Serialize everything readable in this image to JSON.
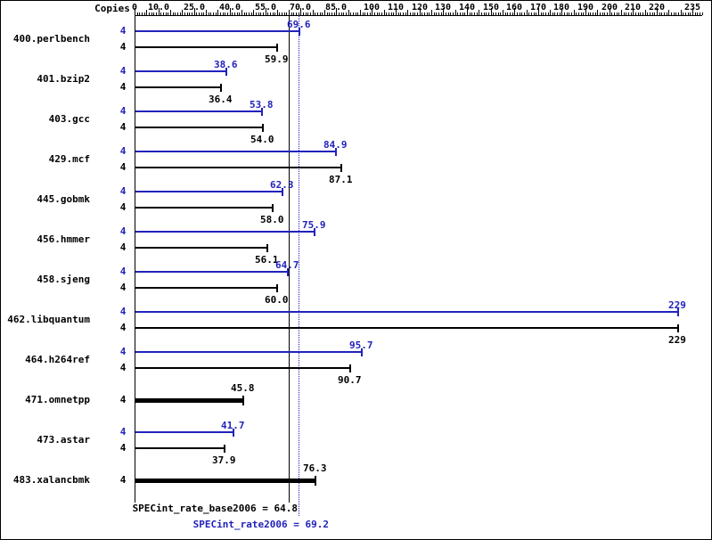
{
  "chart_data": {
    "type": "bar",
    "orientation": "horizontal",
    "copies_header": "Copies",
    "x_axis": {
      "min": 0,
      "max": 235,
      "tick_values": [
        0,
        10,
        25,
        40,
        55,
        70,
        85,
        100,
        110,
        120,
        130,
        140,
        150,
        160,
        170,
        180,
        190,
        200,
        210,
        220,
        235
      ],
      "tick_labels": [
        "0",
        "10.0",
        "25.0",
        "40.0",
        "55.0",
        "70.0",
        "85.0",
        "100",
        "110",
        "120",
        "130",
        "140",
        "150",
        "160",
        "170",
        "180",
        "190",
        "200",
        "210",
        "220",
        "235"
      ]
    },
    "series_colors": {
      "peak": "#2222bb",
      "base": "#000000"
    },
    "benchmarks": [
      {
        "name": "400.perlbench",
        "copies": 4,
        "single": false,
        "peak": 69.6,
        "peak_label": "69.6",
        "base": 59.9,
        "base_label": "59.9"
      },
      {
        "name": "401.bzip2",
        "copies": 4,
        "single": false,
        "peak": 38.6,
        "peak_label": "38.6",
        "base": 36.4,
        "base_label": "36.4"
      },
      {
        "name": "403.gcc",
        "copies": 4,
        "single": false,
        "peak": 53.8,
        "peak_label": "53.8",
        "base": 54.0,
        "base_label": "54.0"
      },
      {
        "name": "429.mcf",
        "copies": 4,
        "single": false,
        "peak": 84.9,
        "peak_label": "84.9",
        "base": 87.1,
        "base_label": "87.1"
      },
      {
        "name": "445.gobmk",
        "copies": 4,
        "single": false,
        "peak": 62.3,
        "peak_label": "62.3",
        "base": 58.0,
        "base_label": "58.0"
      },
      {
        "name": "456.hmmer",
        "copies": 4,
        "single": false,
        "peak": 75.9,
        "peak_label": "75.9",
        "base": 56.1,
        "base_label": "56.1"
      },
      {
        "name": "458.sjeng",
        "copies": 4,
        "single": false,
        "peak": 64.7,
        "peak_label": "64.7",
        "base": 60.0,
        "base_label": "60.0"
      },
      {
        "name": "462.libquantum",
        "copies": 4,
        "single": false,
        "peak": 229,
        "peak_label": "229",
        "base": 229,
        "base_label": "229"
      },
      {
        "name": "464.h264ref",
        "copies": 4,
        "single": false,
        "peak": 95.7,
        "peak_label": "95.7",
        "base": 90.7,
        "base_label": "90.7"
      },
      {
        "name": "471.omnetpp",
        "copies": 4,
        "single": true,
        "base": 45.8,
        "base_label": "45.8"
      },
      {
        "name": "473.astar",
        "copies": 4,
        "single": false,
        "peak": 41.7,
        "peak_label": "41.7",
        "base": 37.9,
        "base_label": "37.9"
      },
      {
        "name": "483.xalancbmk",
        "copies": 4,
        "single": true,
        "base": 76.3,
        "base_label": "76.3"
      }
    ],
    "summary_lines": [
      {
        "kind": "base",
        "value": 64.8,
        "style": "solid",
        "color": "#000000",
        "label": "SPECint_rate_base2006 = 64.8"
      },
      {
        "kind": "peak",
        "value": 69.2,
        "style": "dotted",
        "color": "#2222bb",
        "label": "SPECint_rate2006 = 69.2"
      }
    ]
  }
}
